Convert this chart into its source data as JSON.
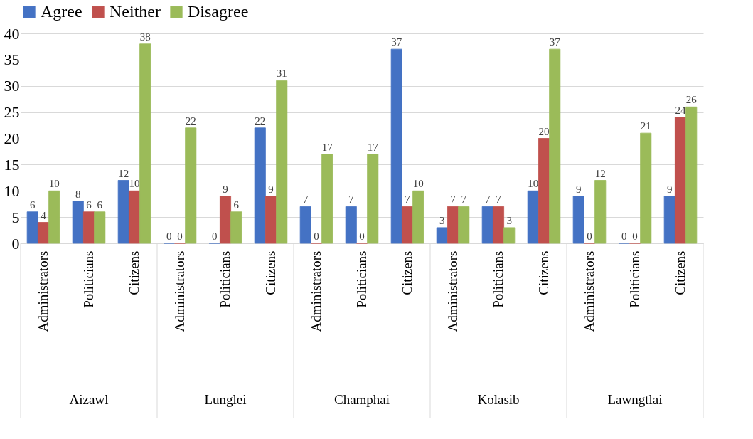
{
  "chart_data": {
    "type": "bar",
    "categories": [
      "Administrators",
      "Politicians",
      "Citizens",
      "Administrators",
      "Politicians",
      "Citizens",
      "Administrators",
      "Politicians",
      "Citizens",
      "Administrators",
      "Politicians",
      "Citizens",
      "Administrators",
      "Politicians",
      "Citizens"
    ],
    "annotations": [
      "Aizawl",
      "Lunglei",
      "Champhai",
      "Kolasib",
      "Lawngtlai"
    ],
    "series": [
      {
        "name": "Agree",
        "color": "#4472c4",
        "values": [
          6,
          8,
          12,
          0,
          0,
          22,
          7,
          7,
          37,
          3,
          7,
          10,
          9,
          0,
          9
        ]
      },
      {
        "name": "Neither",
        "color": "#c0504d",
        "values": [
          4,
          6,
          10,
          0,
          9,
          9,
          0,
          0,
          7,
          7,
          7,
          20,
          0,
          0,
          24
        ]
      },
      {
        "name": "Disagree",
        "color": "#9bbb59",
        "values": [
          10,
          6,
          38,
          22,
          6,
          31,
          17,
          17,
          10,
          7,
          3,
          37,
          12,
          21,
          26
        ]
      }
    ],
    "ylim": [
      0,
      40
    ],
    "yticks": [
      0,
      5,
      10,
      15,
      20,
      25,
      30,
      35,
      40
    ],
    "grid": "y",
    "legend": "top",
    "data_labels": true
  }
}
